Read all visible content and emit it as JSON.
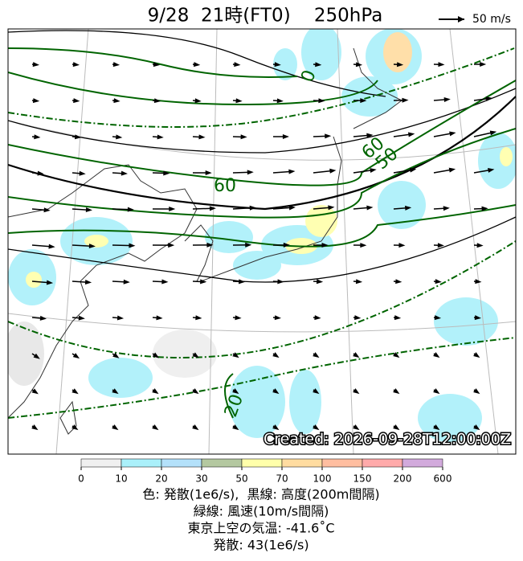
{
  "header": {
    "title": "9/28  21時(FT0)    250hPa",
    "scale_label": "50 m/s"
  },
  "map": {
    "contour_labels": [
      "0",
      "60",
      "60",
      "50",
      "20"
    ],
    "created": "Created: 2026-09-28T12:00:00Z"
  },
  "colorbar": {
    "ticks": [
      0,
      10,
      20,
      30,
      50,
      70,
      100,
      150,
      200,
      600
    ],
    "colors": [
      "#f0f0f0",
      "#aaf0fa",
      "#b4e1fa",
      "#b4c8a0",
      "#ffffaa",
      "#ffdca0",
      "#ffbea0",
      "#ffaaaa",
      "#d2aadc"
    ]
  },
  "caption": [
    "色: 発散(1e6/s),  黒線: 高度(200m間隔)",
    "緑線: 風速(10m/s間隔)",
    "東京上空の気温: -41.6˚C",
    "発散: 43(1e6/s)"
  ]
}
